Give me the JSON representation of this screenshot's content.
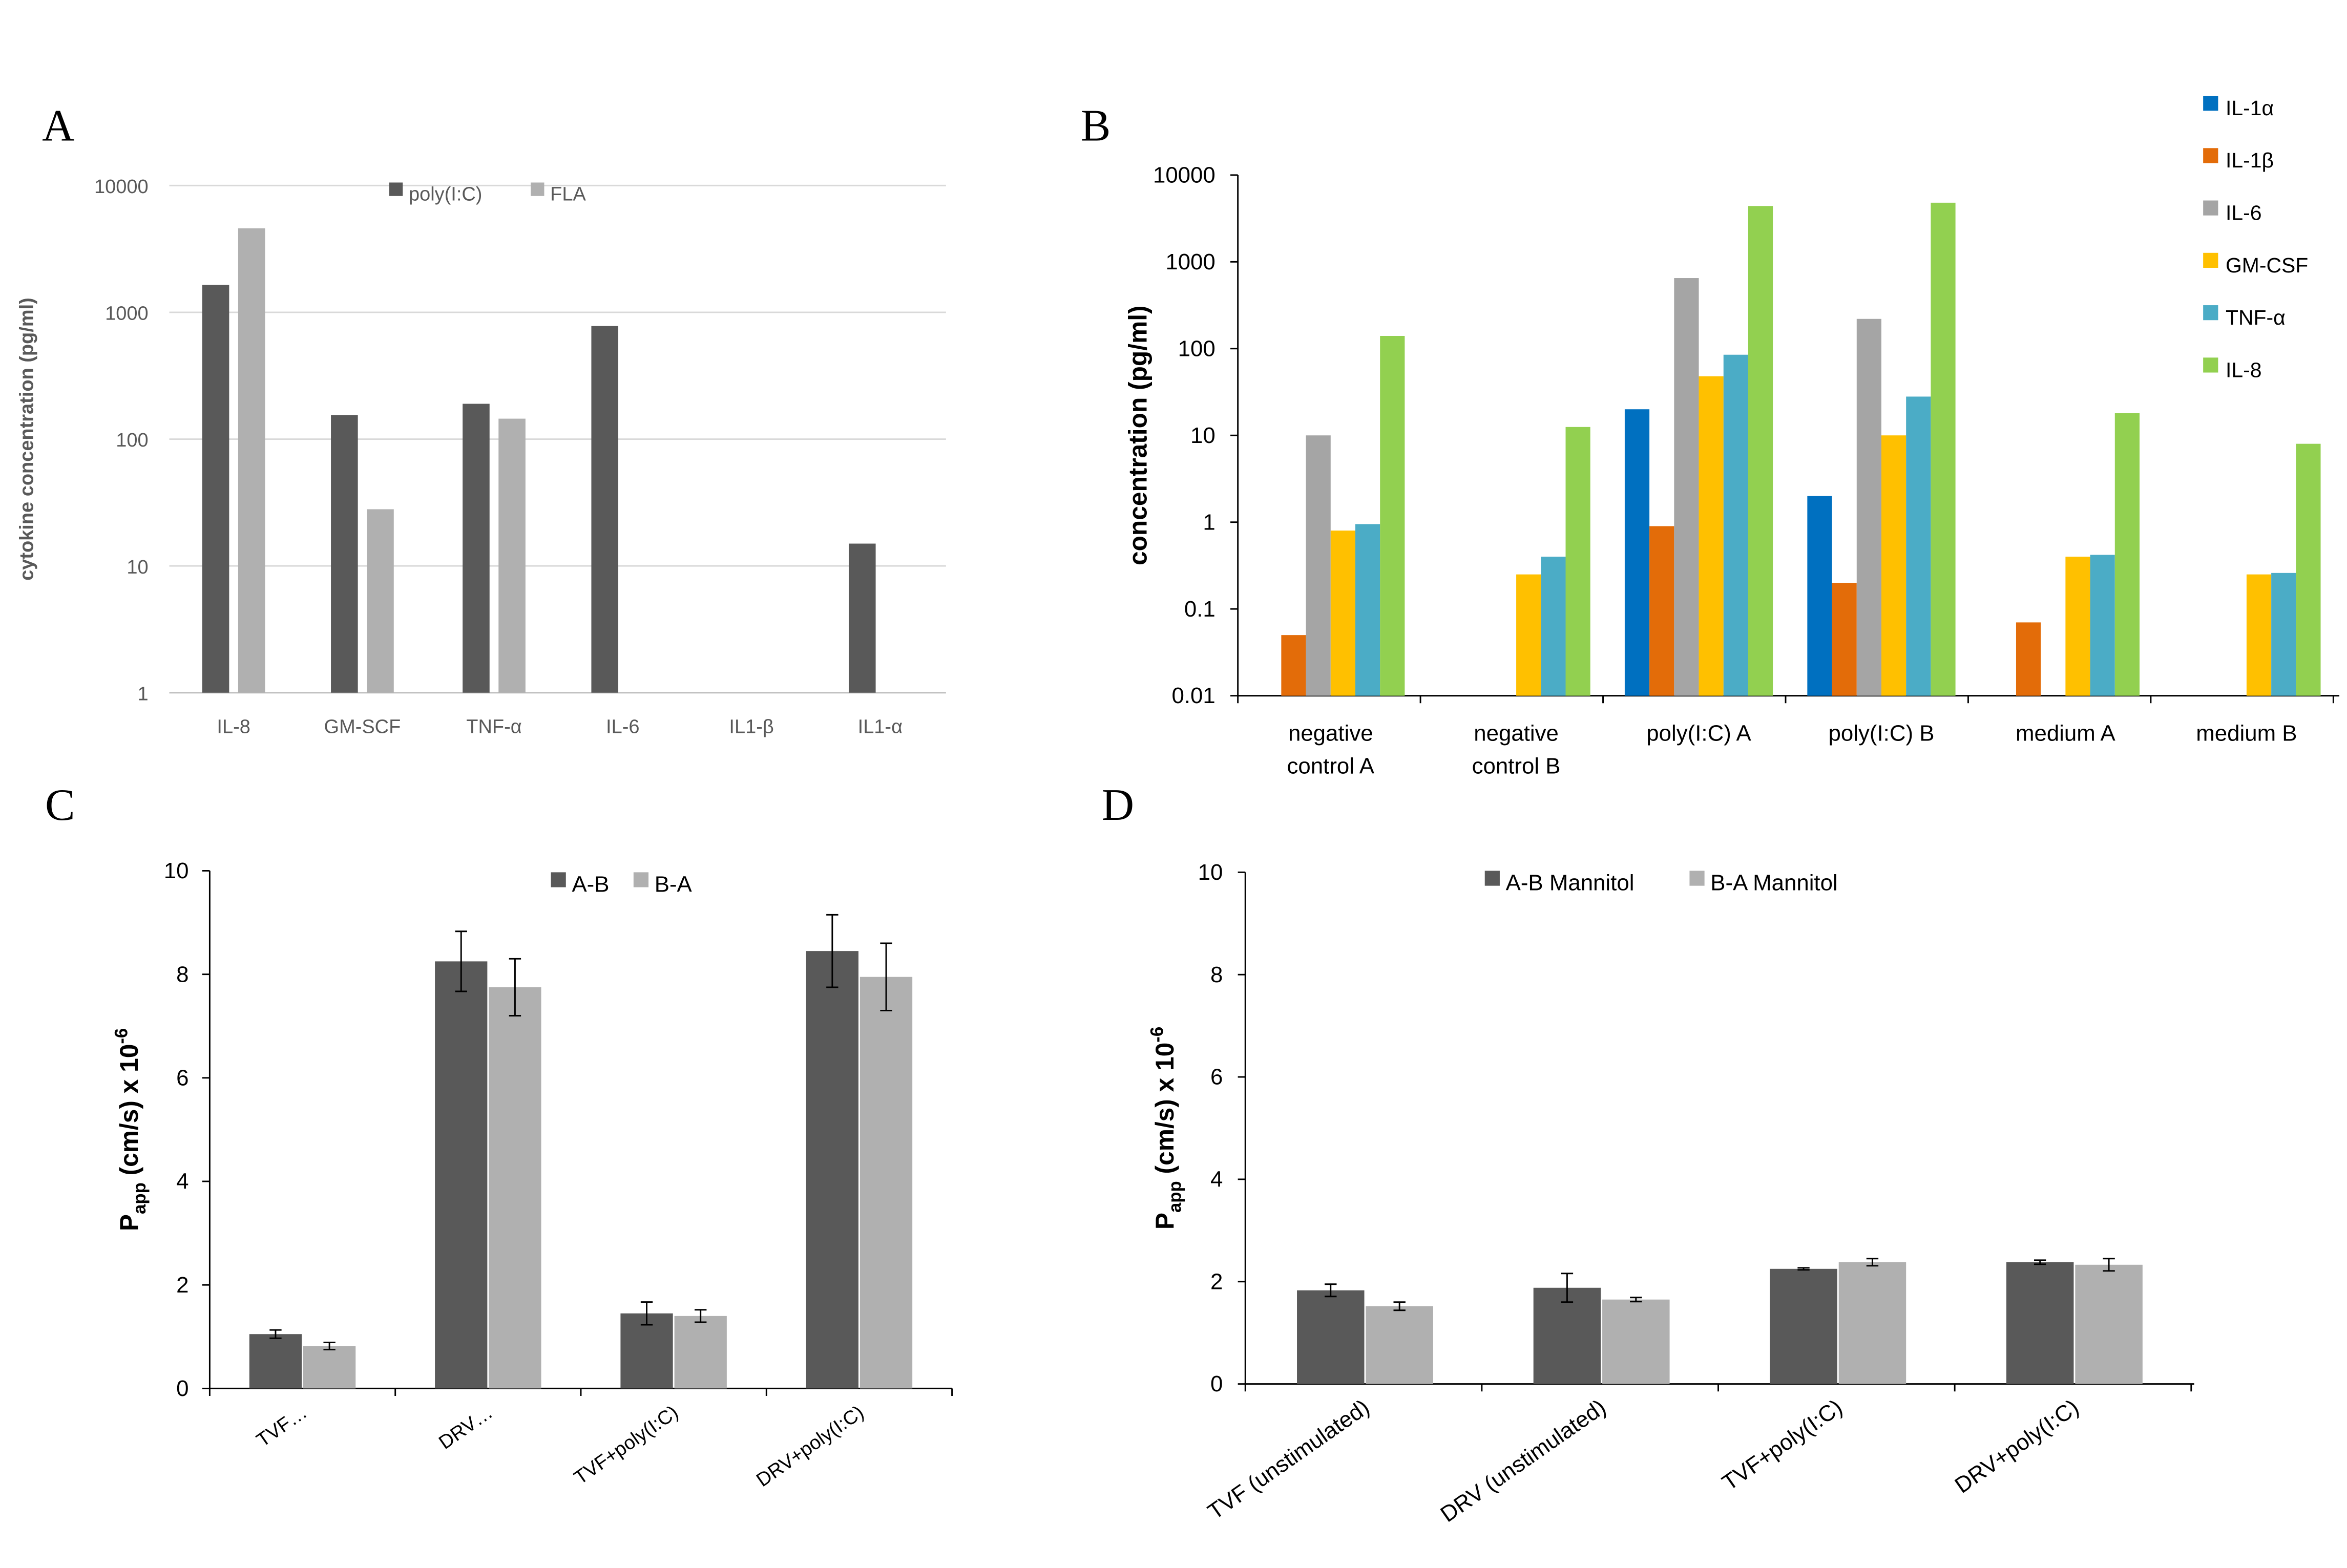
{
  "chart_data": [
    {
      "panel": "A",
      "type": "bar",
      "scale": "log",
      "ylabel": "cytokine concentration (pg/ml)",
      "ylim": [
        1,
        10000
      ],
      "yticks": [
        "1",
        "10",
        "100",
        "1000",
        "10000"
      ],
      "categories": [
        "IL-8",
        "GM-SCF",
        "TNF-α",
        "IL-6",
        "IL1-β",
        "IL1-α"
      ],
      "series": [
        {
          "name": "poly(I:C)",
          "color": "#595959",
          "values": [
            1650,
            155,
            190,
            780,
            null,
            15
          ]
        },
        {
          "name": "FLA",
          "color": "#b0b0b0",
          "values": [
            4600,
            28,
            145,
            null,
            null,
            null
          ]
        }
      ],
      "legend": "top-center",
      "grid": true
    },
    {
      "panel": "B",
      "type": "bar",
      "scale": "log",
      "ylabel": "concentration (pg/ml)",
      "ylim": [
        0.01,
        10000
      ],
      "yticks": [
        "0.01",
        "0.1",
        "1",
        "10",
        "100",
        "1000",
        "10000"
      ],
      "categories": [
        "negative control A",
        "negative control B",
        "poly(I:C) A",
        "poly(I:C) B",
        "medium A",
        "medium B"
      ],
      "series": [
        {
          "name": "IL-1α",
          "color": "#0070c0",
          "values": [
            null,
            null,
            20,
            2,
            null,
            null
          ]
        },
        {
          "name": "IL-1β",
          "color": "#e36c09",
          "values": [
            0.05,
            null,
            0.9,
            0.2,
            0.07,
            null
          ]
        },
        {
          "name": "IL-6",
          "color": "#a5a5a5",
          "values": [
            10,
            null,
            650,
            220,
            null,
            null
          ]
        },
        {
          "name": "GM-CSF",
          "color": "#ffc000",
          "values": [
            0.8,
            0.25,
            48,
            10,
            0.4,
            0.25
          ]
        },
        {
          "name": "TNF-α",
          "color": "#4bacc6",
          "values": [
            0.95,
            0.4,
            85,
            28,
            0.42,
            0.26
          ]
        },
        {
          "name": "IL-8",
          "color": "#92d050",
          "values": [
            140,
            12.5,
            4400,
            4800,
            18,
            8
          ]
        }
      ],
      "legend": "right",
      "grid": false
    },
    {
      "panel": "C",
      "type": "bar",
      "ylabel": "P",
      "ylabel_sub": "app",
      "ylabel_rest": " (cm/s) x 10",
      "ylabel_sup": "-6",
      "ylim": [
        0,
        10
      ],
      "yticks": [
        "0",
        "2",
        "4",
        "6",
        "8",
        "10"
      ],
      "categories": [
        "TVF…",
        "DRV…",
        "TVF+poly(I:C)",
        "DRV+poly(I:C)"
      ],
      "series": [
        {
          "name": "A-B",
          "color": "#595959",
          "values": [
            1.05,
            8.25,
            1.45,
            8.45
          ],
          "errors": [
            0.08,
            0.58,
            0.22,
            0.7
          ]
        },
        {
          "name": "B-A",
          "color": "#b0b0b0",
          "values": [
            0.82,
            7.75,
            1.4,
            7.95
          ],
          "errors": [
            0.07,
            0.55,
            0.12,
            0.65
          ]
        }
      ],
      "legend": "top-center",
      "grid": false
    },
    {
      "panel": "D",
      "type": "bar",
      "ylabel": "P",
      "ylabel_sub": "app",
      "ylabel_rest": " (cm/s) x 10",
      "ylabel_sup": "-6",
      "ylim": [
        0,
        10
      ],
      "yticks": [
        "0",
        "2",
        "4",
        "6",
        "8",
        "10"
      ],
      "categories": [
        "TVF (unstimulated)",
        "DRV (unstimulated)",
        "TVF+poly(I:C)",
        "DRV+poly(I:C)"
      ],
      "series": [
        {
          "name": "A-B Mannitol",
          "color": "#595959",
          "values": [
            1.83,
            1.88,
            2.25,
            2.38
          ],
          "errors": [
            0.12,
            0.28,
            0.02,
            0.04
          ]
        },
        {
          "name": "B-A Mannitol",
          "color": "#b0b0b0",
          "values": [
            1.52,
            1.65,
            2.38,
            2.33
          ],
          "errors": [
            0.08,
            0.04,
            0.07,
            0.12
          ]
        }
      ],
      "legend": "top-center",
      "grid": false
    }
  ]
}
